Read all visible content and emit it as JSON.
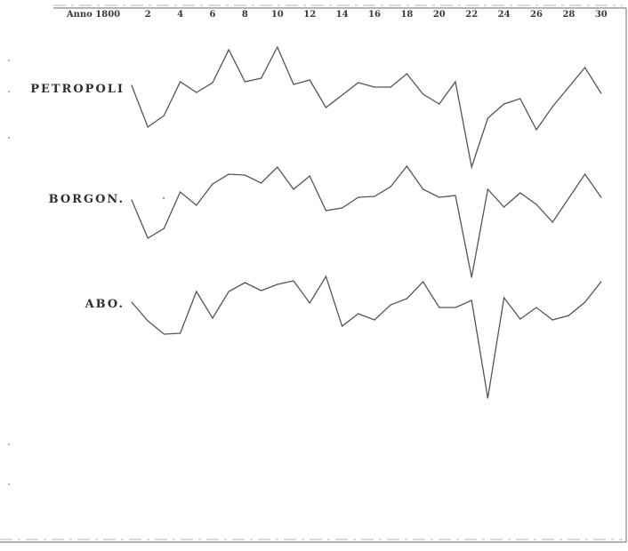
{
  "chart_data": {
    "type": "line",
    "xlabel": "Anno 1800",
    "x": [
      1,
      2,
      3,
      4,
      5,
      6,
      7,
      8,
      9,
      10,
      11,
      12,
      13,
      14,
      15,
      16,
      17,
      18,
      19,
      20,
      21,
      22,
      23,
      24,
      25,
      26,
      27,
      28,
      29,
      30
    ],
    "x_tick_labels": [
      "2",
      "4",
      "6",
      "8",
      "10",
      "12",
      "14",
      "16",
      "18",
      "20",
      "22",
      "24",
      "26",
      "28",
      "30"
    ],
    "x_tick_values": [
      2,
      4,
      6,
      8,
      10,
      12,
      14,
      16,
      18,
      20,
      22,
      24,
      26,
      28,
      30
    ],
    "grid": false,
    "legend": "none",
    "series": [
      {
        "name": "Petropoli",
        "values": [
          96,
          143,
          130,
          92,
          104,
          93,
          56,
          92,
          88,
          53,
          95,
          90,
          121,
          107,
          93,
          98,
          98,
          83,
          106,
          117,
          92,
          188,
          133,
          117,
          111,
          146,
          120,
          98,
          76,
          105
        ]
      },
      {
        "name": "Borgon.",
        "values": [
          225,
          268,
          257,
          216,
          231,
          207,
          196,
          197,
          206,
          188,
          213,
          198,
          237,
          234,
          222,
          221,
          210,
          187,
          213,
          222,
          220,
          312,
          213,
          233,
          217,
          230,
          250,
          223,
          196,
          222
        ]
      },
      {
        "name": "Abo.",
        "values": [
          340,
          361,
          376,
          375,
          328,
          358,
          328,
          318,
          327,
          320,
          316,
          341,
          311,
          367,
          353,
          360,
          343,
          336,
          317,
          346,
          346,
          338,
          448,
          335,
          359,
          346,
          360,
          355,
          340,
          317
        ]
      }
    ]
  }
}
